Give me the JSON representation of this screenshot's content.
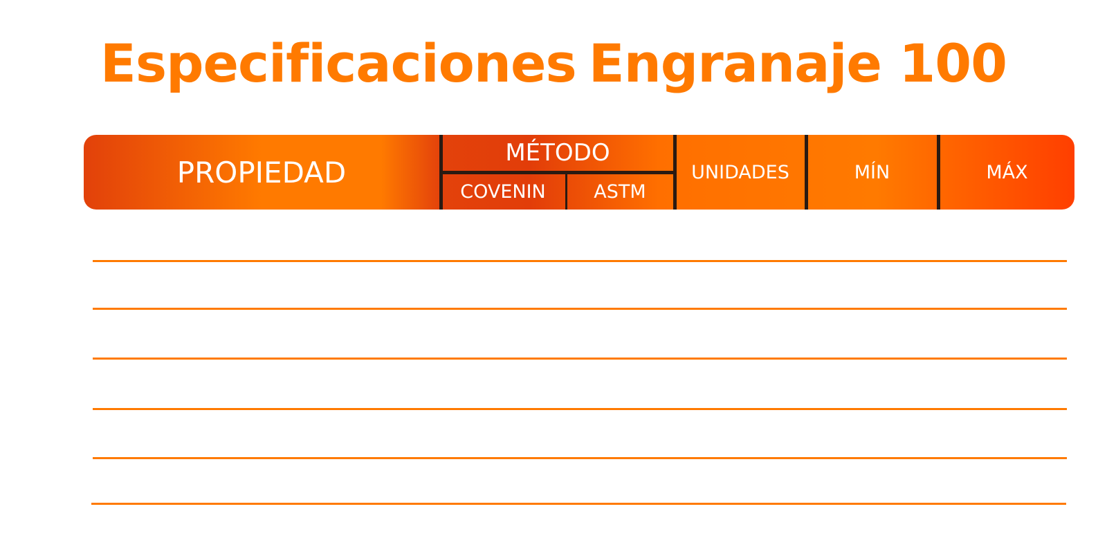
{
  "title": {
    "part1": "Especificaciones",
    "part2": "Engranaje 100"
  },
  "table": {
    "headers": {
      "propiedad": "PROPIEDAD",
      "metodo": "MÉTODO",
      "covenin": "COVENIN",
      "astm": "ASTM",
      "unidades": "UNIDADES",
      "min": "MÍN",
      "max": "MÁX"
    },
    "rows": [
      {},
      {},
      {},
      {},
      {},
      {}
    ]
  },
  "colors": {
    "accent": "#ff7a00",
    "accent_dark": "#e2410a",
    "divider": "#2a1a12",
    "header_text": "#ffffff"
  }
}
